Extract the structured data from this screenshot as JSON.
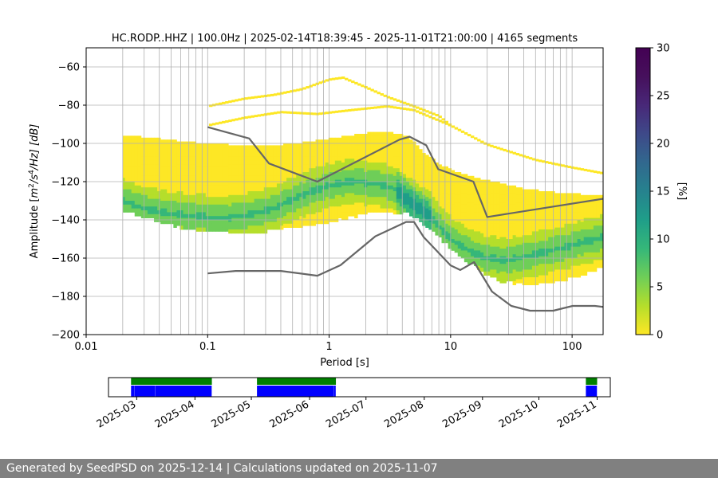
{
  "chart_data": [
    {
      "type": "heatmap",
      "title": "HC.RODP..HHZ | 100.0Hz | 2025-02-14T18:39:45 - 2025-11-01T21:00:00 | 4165 segments",
      "xlabel": "Period [s]",
      "ylabel_parts": [
        "Amplitude [",
        "m",
        "2",
        "/s",
        "4",
        "/Hz] [dB]"
      ],
      "xscale": "log",
      "xlim": [
        0.01,
        180
      ],
      "ylim": [
        -200,
        -50
      ],
      "x_ticks": [
        0.01,
        0.1,
        1,
        10,
        100
      ],
      "x_tick_labels": [
        "0.01",
        "0.1",
        "1",
        "10",
        "100"
      ],
      "y_ticks": [
        -200,
        -180,
        -160,
        -140,
        -120,
        -100,
        -80,
        -60
      ],
      "y_tick_labels": [
        "−200",
        "−180",
        "−160",
        "−140",
        "−120",
        "−100",
        "−80",
        "−60"
      ],
      "grid": true,
      "mode_curve": {
        "period": [
          0.02,
          0.03,
          0.05,
          0.08,
          0.12,
          0.2,
          0.35,
          0.6,
          1.0,
          1.5,
          2.5,
          3.5,
          4.5,
          5.5,
          7,
          10,
          15,
          20,
          30,
          50,
          80,
          120,
          180
        ],
        "db": [
          -129,
          -133,
          -136,
          -137,
          -138,
          -137,
          -133,
          -126,
          -121,
          -119,
          -120,
          -123,
          -129,
          -133,
          -138,
          -149,
          -156,
          -159,
          -160,
          -157,
          -154,
          -151,
          -148
        ]
      },
      "density_band": {
        "period": [
          0.02,
          0.04,
          0.08,
          0.15,
          0.3,
          0.6,
          1.0,
          2,
          3,
          4.5,
          6,
          8,
          12,
          18,
          25,
          40,
          70,
          120,
          180
        ],
        "db_low": [
          -134,
          -140,
          -145,
          -146,
          -145,
          -143,
          -140,
          -136,
          -135,
          -136,
          -141,
          -148,
          -158,
          -166,
          -171,
          -173,
          -172,
          -168,
          -164
        ],
        "db_high": [
          -95,
          -97,
          -99,
          -100,
          -101,
          -99,
          -97,
          -94,
          -93,
          -96,
          -104,
          -110,
          -115,
          -118,
          -120,
          -123,
          -125,
          -126,
          -127
        ]
      },
      "sparse_curves": [
        {
          "name": "upper-envelope",
          "period": [
            0.1,
            0.2,
            0.35,
            0.6,
            1.0,
            1.3,
            2,
            3,
            5,
            8,
            10
          ],
          "db": [
            -80,
            -76,
            -74,
            -71,
            -66,
            -65,
            -70,
            -75,
            -80,
            -85,
            -90
          ]
        },
        {
          "name": "upper-envelope-2",
          "period": [
            0.1,
            0.2,
            0.4,
            0.8,
            1.5,
            3,
            5,
            10,
            20,
            50,
            100,
            180
          ],
          "db": [
            -90,
            -86,
            -83,
            -84,
            -82,
            -80,
            -82,
            -90,
            -100,
            -108,
            -112,
            -115
          ]
        }
      ],
      "noise_models": {
        "color": "#666666",
        "nhnm": {
          "name": "NHNM",
          "period": [
            0.1,
            0.22,
            0.32,
            0.8,
            3.8,
            4.6,
            6.3,
            7.9,
            15.4,
            20,
            354.8
          ],
          "db": [
            -91.5,
            -97.4,
            -110.5,
            -120,
            -98,
            -96.5,
            -101,
            -113.5,
            -120,
            -138.5,
            -126
          ]
        },
        "nlnm": {
          "name": "NLNM",
          "period": [
            0.1,
            0.17,
            0.4,
            0.8,
            1.24,
            2.4,
            4.3,
            5,
            6,
            10,
            12,
            15.6,
            21.9,
            31.6,
            45,
            70,
            101,
            154,
            328
          ],
          "db": [
            -168,
            -166.7,
            -166.7,
            -169.2,
            -163.7,
            -148.6,
            -141.1,
            -141.1,
            -149,
            -163.8,
            -166.2,
            -162.1,
            -177.5,
            -185,
            -187.5,
            -187.5,
            -185,
            -185,
            -187.5
          ]
        }
      },
      "colorbar": {
        "label": "[%]",
        "range": [
          0,
          30
        ],
        "ticks": [
          0,
          5,
          10,
          15,
          20,
          25,
          30
        ],
        "tick_labels": [
          "0",
          "5",
          "10",
          "15",
          "20",
          "25",
          "30"
        ],
        "colormap": "viridis_r"
      }
    },
    {
      "type": "timeline",
      "title": "",
      "date_range": [
        "2025-02-14",
        "2025-11-08"
      ],
      "tick_dates": [
        "2025-03-01",
        "2025-04-01",
        "2025-05-01",
        "2025-06-01",
        "2025-07-01",
        "2025-08-01",
        "2025-09-01",
        "2025-10-01",
        "2025-11-01"
      ],
      "tick_labels": [
        "2025-03",
        "2025-04",
        "2025-05",
        "2025-06",
        "2025-07",
        "2025-08",
        "2025-09",
        "2025-10",
        "2025-11"
      ],
      "data_available": {
        "color": "#008000",
        "spans": [
          [
            "2025-02-26",
            "2025-04-09"
          ],
          [
            "2025-05-04",
            "2025-06-14"
          ],
          [
            "2025-10-26",
            "2025-10-31"
          ]
        ]
      },
      "psd_coverage": {
        "color": "#0000ff",
        "spans": [
          [
            "2025-02-26",
            "2025-02-27"
          ],
          [
            "2025-02-28",
            "2025-03-10"
          ],
          [
            "2025-03-11",
            "2025-04-09"
          ],
          [
            "2025-05-04",
            "2025-06-13"
          ],
          [
            "2025-06-14",
            "2025-06-14"
          ],
          [
            "2025-10-26",
            "2025-10-31"
          ]
        ]
      }
    }
  ],
  "footer": {
    "text": "Generated by SeedPSD on 2025-12-14 | Calculations updated on 2025-11-07"
  }
}
